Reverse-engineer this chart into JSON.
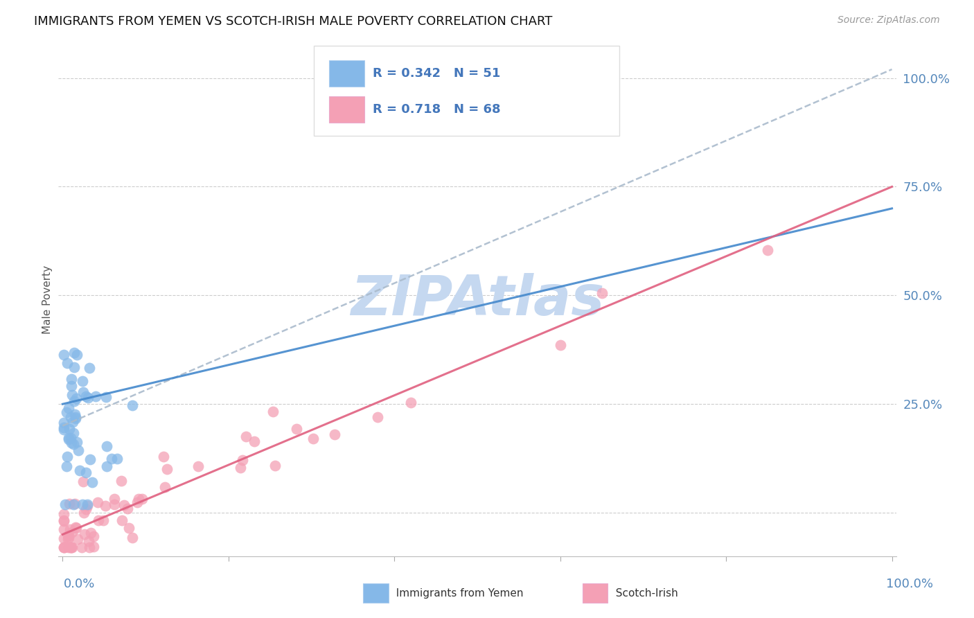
{
  "title": "IMMIGRANTS FROM YEMEN VS SCOTCH-IRISH MALE POVERTY CORRELATION CHART",
  "source": "Source: ZipAtlas.com",
  "ylabel": "Male Poverty",
  "watermark": "ZIPAtlas",
  "series1_name": "Immigrants from Yemen",
  "series1_color": "#85B8E8",
  "series1_R": 0.342,
  "series1_N": 51,
  "series2_name": "Scotch-Irish",
  "series2_color": "#F4A0B5",
  "series2_R": 0.718,
  "series2_N": 68,
  "line1_color": "#4488CC",
  "line1_style": "solid",
  "line2_color": "#E06080",
  "line2_style": "solid",
  "dash_color": "#AABBCC",
  "bg_color": "#FFFFFF",
  "grid_color": "#CCCCCC",
  "title_color": "#111111",
  "axis_label_color": "#5588BB",
  "watermark_color": "#C5D8F0",
  "legend_text_color": "#4477BB",
  "title_fontsize": 13,
  "source_fontsize": 10,
  "tick_fontsize": 13,
  "legend_fontsize": 13
}
